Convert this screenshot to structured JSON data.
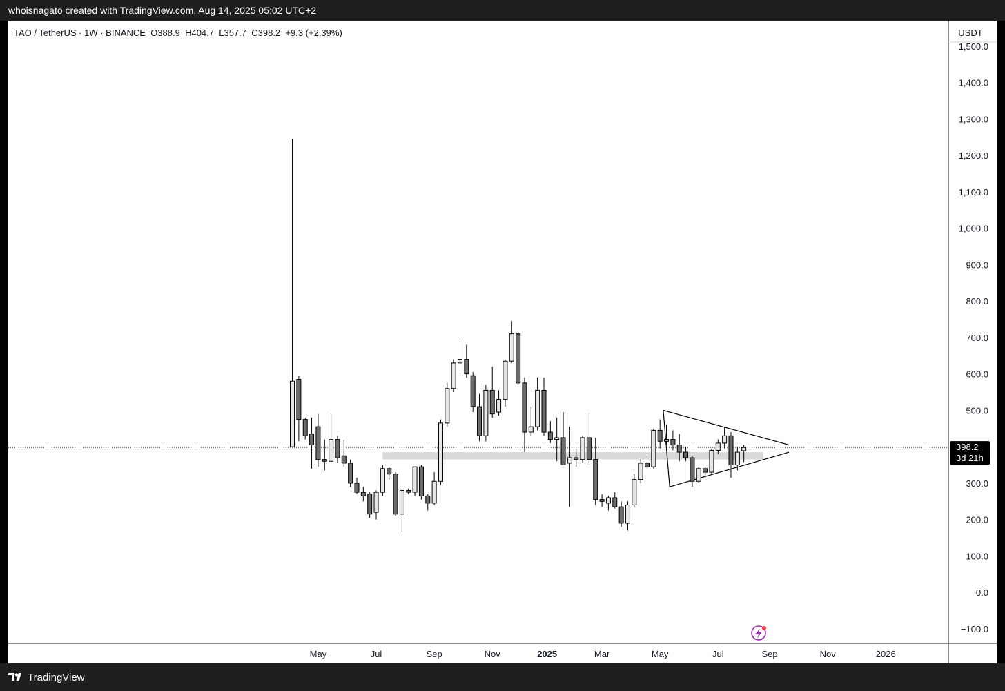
{
  "header": {
    "credit": "whoisnagato created with TradingView.com, Aug 14, 2025 05:02 UTC+2"
  },
  "legend": {
    "symbol": "TAO / TetherUS · 1W · BINANCE",
    "open": "O388.9",
    "high": "H404.7",
    "low": "L357.7",
    "close": "C398.2",
    "change": "+9.3 (+2.39%)"
  },
  "price_axis": {
    "currency": "USDT",
    "last_price": "398.2",
    "countdown": "3d 21h"
  },
  "footer": {
    "brand": "TradingView"
  },
  "colors": {
    "candle_up": "#e6e6e6",
    "candle_down": "#6b6b6b",
    "zone": "#d9d9d9",
    "axis_text": "#131722"
  },
  "chart_data": {
    "type": "candlestick",
    "interval": "1W",
    "y_unit": "USDT",
    "y_ticks": [
      1500,
      1400,
      1300,
      1200,
      1100,
      1000,
      900,
      800,
      700,
      600,
      500,
      400,
      300,
      200,
      100,
      0,
      -100
    ],
    "y_tick_labels": [
      "1,500.0",
      "1,400.0",
      "1,300.0",
      "1,200.0",
      "1,100.0",
      "1,000.0",
      "900.0",
      "800.0",
      "700.0",
      "600.0",
      "500.0",
      "",
      "300.0",
      "200.0",
      "100.0",
      "0.0",
      "−100.0"
    ],
    "ylim": [
      -140,
      1570
    ],
    "x_ticks": [
      {
        "label": "May",
        "index": 4,
        "bold": false
      },
      {
        "label": "Jul",
        "index": 13,
        "bold": false
      },
      {
        "label": "Sep",
        "index": 22,
        "bold": false
      },
      {
        "label": "Nov",
        "index": 31,
        "bold": false
      },
      {
        "label": "2025",
        "index": 39.5,
        "bold": true
      },
      {
        "label": "Mar",
        "index": 48,
        "bold": false
      },
      {
        "label": "May",
        "index": 57,
        "bold": false
      },
      {
        "label": "Jul",
        "index": 66,
        "bold": false
      },
      {
        "label": "Sep",
        "index": 74,
        "bold": false
      },
      {
        "label": "Nov",
        "index": 83,
        "bold": false
      },
      {
        "label": "2026",
        "index": 92,
        "bold": false
      }
    ],
    "x_range": [
      -0.7,
      98.5
    ],
    "candles": [
      {
        "o": 400,
        "h": 1245,
        "l": 400,
        "c": 580
      },
      {
        "o": 585,
        "h": 595,
        "l": 415,
        "c": 475
      },
      {
        "o": 475,
        "h": 480,
        "l": 420,
        "c": 430
      },
      {
        "o": 435,
        "h": 480,
        "l": 340,
        "c": 405
      },
      {
        "o": 455,
        "h": 490,
        "l": 345,
        "c": 365
      },
      {
        "o": 365,
        "h": 420,
        "l": 335,
        "c": 360
      },
      {
        "o": 360,
        "h": 490,
        "l": 355,
        "c": 420
      },
      {
        "o": 420,
        "h": 430,
        "l": 355,
        "c": 370
      },
      {
        "o": 375,
        "h": 420,
        "l": 345,
        "c": 355
      },
      {
        "o": 355,
        "h": 365,
        "l": 290,
        "c": 300
      },
      {
        "o": 300,
        "h": 315,
        "l": 270,
        "c": 275
      },
      {
        "o": 275,
        "h": 290,
        "l": 250,
        "c": 265
      },
      {
        "o": 270,
        "h": 275,
        "l": 205,
        "c": 215
      },
      {
        "o": 220,
        "h": 280,
        "l": 200,
        "c": 275
      },
      {
        "o": 275,
        "h": 350,
        "l": 265,
        "c": 340
      },
      {
        "o": 340,
        "h": 345,
        "l": 310,
        "c": 325
      },
      {
        "o": 325,
        "h": 330,
        "l": 210,
        "c": 215
      },
      {
        "o": 215,
        "h": 285,
        "l": 165,
        "c": 280
      },
      {
        "o": 280,
        "h": 285,
        "l": 270,
        "c": 275
      },
      {
        "o": 275,
        "h": 345,
        "l": 265,
        "c": 345
      },
      {
        "o": 345,
        "h": 350,
        "l": 255,
        "c": 265
      },
      {
        "o": 265,
        "h": 270,
        "l": 225,
        "c": 245
      },
      {
        "o": 245,
        "h": 330,
        "l": 240,
        "c": 305
      },
      {
        "o": 305,
        "h": 475,
        "l": 295,
        "c": 465
      },
      {
        "o": 465,
        "h": 575,
        "l": 455,
        "c": 560
      },
      {
        "o": 560,
        "h": 640,
        "l": 550,
        "c": 630
      },
      {
        "o": 630,
        "h": 690,
        "l": 600,
        "c": 640
      },
      {
        "o": 640,
        "h": 680,
        "l": 590,
        "c": 600
      },
      {
        "o": 595,
        "h": 605,
        "l": 495,
        "c": 510
      },
      {
        "o": 510,
        "h": 545,
        "l": 415,
        "c": 430
      },
      {
        "o": 430,
        "h": 570,
        "l": 415,
        "c": 555
      },
      {
        "o": 555,
        "h": 620,
        "l": 480,
        "c": 490
      },
      {
        "o": 495,
        "h": 555,
        "l": 485,
        "c": 530
      },
      {
        "o": 530,
        "h": 640,
        "l": 510,
        "c": 635
      },
      {
        "o": 635,
        "h": 745,
        "l": 630,
        "c": 710
      },
      {
        "o": 710,
        "h": 715,
        "l": 570,
        "c": 575
      },
      {
        "o": 575,
        "h": 590,
        "l": 385,
        "c": 440
      },
      {
        "o": 440,
        "h": 510,
        "l": 430,
        "c": 455
      },
      {
        "o": 455,
        "h": 590,
        "l": 445,
        "c": 555
      },
      {
        "o": 555,
        "h": 590,
        "l": 430,
        "c": 440
      },
      {
        "o": 440,
        "h": 470,
        "l": 410,
        "c": 420
      },
      {
        "o": 420,
        "h": 480,
        "l": 360,
        "c": 425
      },
      {
        "o": 425,
        "h": 495,
        "l": 350,
        "c": 350
      },
      {
        "o": 355,
        "h": 455,
        "l": 235,
        "c": 370
      },
      {
        "o": 370,
        "h": 395,
        "l": 345,
        "c": 365
      },
      {
        "o": 365,
        "h": 430,
        "l": 355,
        "c": 425
      },
      {
        "o": 425,
        "h": 490,
        "l": 350,
        "c": 365
      },
      {
        "o": 365,
        "h": 425,
        "l": 240,
        "c": 255
      },
      {
        "o": 255,
        "h": 270,
        "l": 235,
        "c": 250
      },
      {
        "o": 245,
        "h": 265,
        "l": 225,
        "c": 260
      },
      {
        "o": 260,
        "h": 275,
        "l": 230,
        "c": 235
      },
      {
        "o": 235,
        "h": 250,
        "l": 180,
        "c": 190
      },
      {
        "o": 190,
        "h": 250,
        "l": 170,
        "c": 240
      },
      {
        "o": 240,
        "h": 325,
        "l": 235,
        "c": 310
      },
      {
        "o": 310,
        "h": 365,
        "l": 300,
        "c": 355
      },
      {
        "o": 355,
        "h": 375,
        "l": 340,
        "c": 345
      },
      {
        "o": 345,
        "h": 450,
        "l": 340,
        "c": 445
      },
      {
        "o": 445,
        "h": 475,
        "l": 395,
        "c": 415
      },
      {
        "o": 415,
        "h": 460,
        "l": 405,
        "c": 420
      },
      {
        "o": 420,
        "h": 445,
        "l": 390,
        "c": 405
      },
      {
        "o": 405,
        "h": 435,
        "l": 360,
        "c": 385
      },
      {
        "o": 385,
        "h": 400,
        "l": 360,
        "c": 370
      },
      {
        "o": 370,
        "h": 375,
        "l": 290,
        "c": 305
      },
      {
        "o": 305,
        "h": 345,
        "l": 300,
        "c": 340
      },
      {
        "o": 340,
        "h": 345,
        "l": 310,
        "c": 330
      },
      {
        "o": 330,
        "h": 395,
        "l": 325,
        "c": 390
      },
      {
        "o": 390,
        "h": 420,
        "l": 380,
        "c": 410
      },
      {
        "o": 410,
        "h": 455,
        "l": 395,
        "c": 430
      },
      {
        "o": 430,
        "h": 440,
        "l": 315,
        "c": 350
      },
      {
        "o": 350,
        "h": 400,
        "l": 335,
        "c": 385
      },
      {
        "o": 389,
        "h": 405,
        "l": 358,
        "c": 398
      }
    ],
    "support_zone": {
      "from": 365,
      "to": 385,
      "x_start": 14,
      "x_end": 73
    },
    "triangle": {
      "upper": [
        [
          57.5,
          500
        ],
        [
          77,
          405
        ]
      ],
      "lower": [
        [
          58.5,
          290
        ],
        [
          77,
          385
        ]
      ]
    },
    "last_price_line": 398.2
  }
}
